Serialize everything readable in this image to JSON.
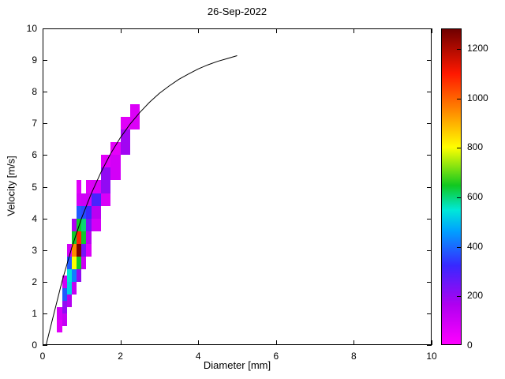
{
  "chart_data": {
    "type": "heatmap",
    "title": "26-Sep-2022",
    "xlabel": "Diameter [mm]",
    "ylabel": "Velocity [m/s]",
    "xlim": [
      0,
      10
    ],
    "ylim": [
      0,
      10
    ],
    "x_ticks": [
      0,
      2,
      4,
      6,
      8,
      10
    ],
    "y_ticks": [
      0,
      1,
      2,
      3,
      4,
      5,
      6,
      7,
      8,
      9,
      10
    ],
    "grid": false,
    "legend": "none",
    "colorbar": {
      "min": 0,
      "max": 1280,
      "ticks": [
        0,
        200,
        400,
        600,
        800,
        1000,
        1200
      ],
      "position": "right",
      "stops": [
        {
          "value": 0,
          "color": "#ff00ff"
        },
        {
          "value": 160,
          "color": "#b000f0"
        },
        {
          "value": 320,
          "color": "#3828ff"
        },
        {
          "value": 460,
          "color": "#00a0ff"
        },
        {
          "value": 545,
          "color": "#00e8d8"
        },
        {
          "value": 645,
          "color": "#10c820"
        },
        {
          "value": 800,
          "color": "#ffff00"
        },
        {
          "value": 960,
          "color": "#ff8000"
        },
        {
          "value": 1100,
          "color": "#ff1800"
        },
        {
          "value": 1280,
          "color": "#700000"
        }
      ]
    },
    "cell_format": [
      "d_min_mm",
      "d_max_mm",
      "v_min_ms",
      "v_max_ms",
      "value"
    ],
    "cells": [
      [
        0.375,
        0.5,
        0.4,
        0.8,
        60
      ],
      [
        0.375,
        0.5,
        0.8,
        1.2,
        90
      ],
      [
        0.5,
        0.625,
        0.6,
        1.0,
        120
      ],
      [
        0.5,
        0.625,
        1.0,
        1.4,
        200
      ],
      [
        0.5,
        0.625,
        1.4,
        1.8,
        380
      ],
      [
        0.5,
        0.625,
        1.8,
        2.2,
        100
      ],
      [
        0.625,
        0.75,
        1.2,
        1.6,
        150
      ],
      [
        0.625,
        0.75,
        1.6,
        2.0,
        520
      ],
      [
        0.625,
        0.75,
        2.0,
        2.4,
        540
      ],
      [
        0.625,
        0.75,
        2.4,
        2.8,
        380
      ],
      [
        0.625,
        0.75,
        2.8,
        3.2,
        90
      ],
      [
        0.75,
        0.875,
        1.6,
        2.0,
        120
      ],
      [
        0.75,
        0.875,
        2.0,
        2.4,
        420
      ],
      [
        0.75,
        0.875,
        2.4,
        2.8,
        800
      ],
      [
        0.75,
        0.875,
        2.8,
        3.2,
        950
      ],
      [
        0.75,
        0.875,
        3.2,
        3.6,
        640
      ],
      [
        0.75,
        0.875,
        3.6,
        4.0,
        160
      ],
      [
        0.875,
        1.0,
        2.0,
        2.4,
        200
      ],
      [
        0.875,
        1.0,
        2.4,
        2.8,
        640
      ],
      [
        0.875,
        1.0,
        2.8,
        3.2,
        1260
      ],
      [
        0.875,
        1.0,
        3.2,
        3.6,
        1080
      ],
      [
        0.875,
        1.0,
        3.6,
        4.0,
        640
      ],
      [
        0.875,
        1.0,
        4.0,
        4.4,
        380
      ],
      [
        0.875,
        1.0,
        4.4,
        4.8,
        90
      ],
      [
        0.875,
        1.0,
        4.8,
        5.2,
        60
      ],
      [
        1.0,
        1.125,
        2.4,
        2.8,
        100
      ],
      [
        1.0,
        1.125,
        2.8,
        3.2,
        240
      ],
      [
        1.0,
        1.125,
        3.2,
        3.6,
        640
      ],
      [
        1.0,
        1.125,
        3.6,
        4.0,
        600
      ],
      [
        1.0,
        1.125,
        4.0,
        4.4,
        360
      ],
      [
        1.0,
        1.125,
        4.4,
        4.8,
        100
      ],
      [
        1.125,
        1.25,
        2.8,
        3.2,
        70
      ],
      [
        1.125,
        1.25,
        3.2,
        3.6,
        140
      ],
      [
        1.125,
        1.25,
        3.6,
        4.0,
        240
      ],
      [
        1.125,
        1.25,
        4.0,
        4.4,
        320
      ],
      [
        1.125,
        1.25,
        4.4,
        4.8,
        100
      ],
      [
        1.125,
        1.25,
        4.8,
        5.2,
        60
      ],
      [
        1.25,
        1.5,
        3.6,
        4.0,
        90
      ],
      [
        1.25,
        1.5,
        4.0,
        4.4,
        140
      ],
      [
        1.25,
        1.5,
        4.4,
        4.8,
        300
      ],
      [
        1.25,
        1.5,
        4.8,
        5.2,
        70
      ],
      [
        1.5,
        1.75,
        4.4,
        4.8,
        80
      ],
      [
        1.5,
        1.75,
        4.8,
        5.6,
        200
      ],
      [
        1.5,
        1.75,
        5.6,
        6.0,
        60
      ],
      [
        1.75,
        2.0,
        5.2,
        6.0,
        90
      ],
      [
        1.75,
        2.0,
        6.0,
        6.4,
        50
      ],
      [
        2.0,
        2.25,
        6.0,
        6.8,
        180
      ],
      [
        2.0,
        2.25,
        6.8,
        7.2,
        60
      ],
      [
        2.25,
        2.5,
        6.8,
        7.6,
        70
      ]
    ],
    "fit_line": {
      "name": "terminal-velocity-curve",
      "color": "#000000",
      "points": [
        [
          0.09,
          0.0
        ],
        [
          0.25,
          0.79
        ],
        [
          0.5,
          2.02
        ],
        [
          0.75,
          3.08
        ],
        [
          1.0,
          4.0
        ],
        [
          1.25,
          4.78
        ],
        [
          1.5,
          5.46
        ],
        [
          1.75,
          6.05
        ],
        [
          2.0,
          6.55
        ],
        [
          2.25,
          6.98
        ],
        [
          2.5,
          7.35
        ],
        [
          2.75,
          7.67
        ],
        [
          3.0,
          7.95
        ],
        [
          3.25,
          8.18
        ],
        [
          3.5,
          8.39
        ],
        [
          3.75,
          8.56
        ],
        [
          4.0,
          8.72
        ],
        [
          4.25,
          8.85
        ],
        [
          4.5,
          8.96
        ],
        [
          4.75,
          9.05
        ],
        [
          5.0,
          9.14
        ]
      ]
    }
  }
}
